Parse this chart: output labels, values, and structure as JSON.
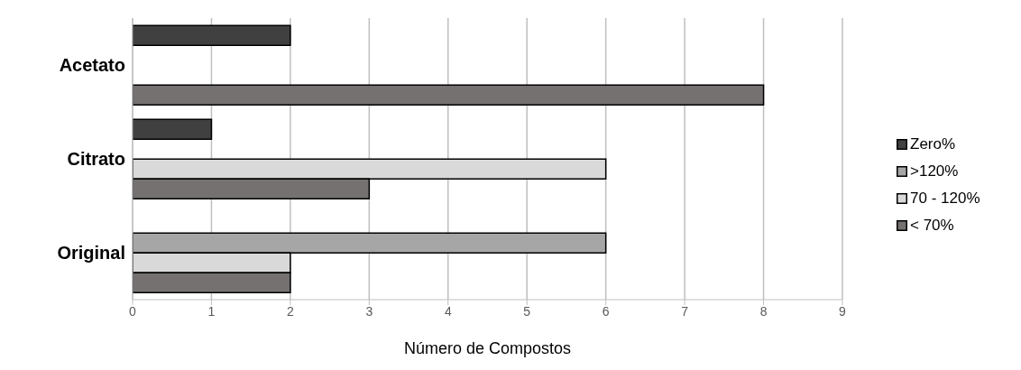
{
  "chart_data": {
    "type": "bar",
    "orientation": "horizontal",
    "xlabel": "Número de Compostos",
    "categories": [
      "Acetato",
      "Citrato",
      "Original"
    ],
    "series": [
      {
        "name": "Zero%",
        "color": "#404040",
        "values": [
          2,
          1,
          null
        ]
      },
      {
        "name": ">120%",
        "color": "#a6a6a6",
        "values": [
          null,
          null,
          6
        ]
      },
      {
        "name": "70 - 120%",
        "color": "#d9d9d9",
        "values": [
          null,
          6,
          2
        ]
      },
      {
        "name": "< 70%",
        "color": "#757171",
        "values": [
          8,
          3,
          2
        ]
      }
    ],
    "xlim": [
      0,
      9
    ],
    "xticks": [
      0,
      1,
      2,
      3,
      4,
      5,
      6,
      7,
      8,
      9
    ],
    "grid": "x",
    "legend": "right"
  }
}
